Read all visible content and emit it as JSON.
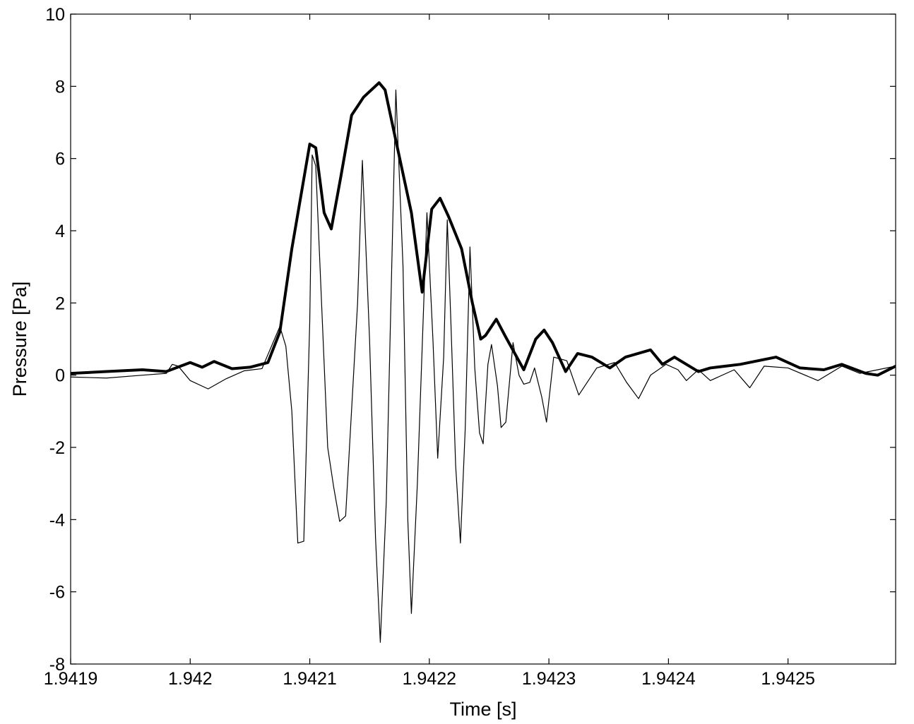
{
  "chart_data": {
    "type": "line",
    "title": "",
    "xlabel": "Time [s]",
    "ylabel": "Pressure [Pa]",
    "xlim": [
      1.9419,
      1.94259
    ],
    "ylim": [
      -8,
      10
    ],
    "xticks": [
      1.9419,
      1.942,
      1.9421,
      1.9422,
      1.9423,
      1.9424,
      1.9425
    ],
    "xtick_labels": [
      "1.9419",
      "1.942",
      "1.9421",
      "1.9422",
      "1.9423",
      "1.9424",
      "1.9425"
    ],
    "yticks": [
      -8,
      -6,
      -4,
      -2,
      0,
      2,
      4,
      6,
      8,
      10
    ],
    "ytick_labels": [
      "-8",
      "-6",
      "-4",
      "-2",
      "0",
      "2",
      "4",
      "6",
      "8",
      "10"
    ],
    "grid": false,
    "legend": false,
    "series": [
      {
        "style": "thin",
        "color": "#000000",
        "points": [
          [
            1.9419,
            -0.05
          ],
          [
            1.94193,
            -0.08
          ],
          [
            1.94196,
            0.0
          ],
          [
            1.94198,
            0.05
          ],
          [
            1.941985,
            0.3
          ],
          [
            1.94199,
            0.25
          ],
          [
            1.942,
            -0.15
          ],
          [
            1.942015,
            -0.38
          ],
          [
            1.94203,
            -0.1
          ],
          [
            1.942045,
            0.12
          ],
          [
            1.94206,
            0.18
          ],
          [
            1.942075,
            1.35
          ],
          [
            1.94208,
            0.8
          ],
          [
            1.942085,
            -1.0
          ],
          [
            1.94209,
            -4.65
          ],
          [
            1.942095,
            -4.6
          ],
          [
            1.9421,
            1.5
          ],
          [
            1.942102,
            6.1
          ],
          [
            1.942105,
            5.8
          ],
          [
            1.942115,
            -2.0
          ],
          [
            1.94212,
            -3.1
          ],
          [
            1.942125,
            -4.05
          ],
          [
            1.94213,
            -3.9
          ],
          [
            1.94214,
            2.0
          ],
          [
            1.942144,
            5.95
          ],
          [
            1.94215,
            1.0
          ],
          [
            1.942155,
            -4.5
          ],
          [
            1.942159,
            -7.4
          ],
          [
            1.942164,
            -3.5
          ],
          [
            1.942172,
            7.9
          ],
          [
            1.942178,
            3.0
          ],
          [
            1.942182,
            -4.0
          ],
          [
            1.942185,
            -6.6
          ],
          [
            1.94219,
            -3.0
          ],
          [
            1.942198,
            4.5
          ],
          [
            1.942203,
            1.0
          ],
          [
            1.942207,
            -2.3
          ],
          [
            1.942212,
            0.5
          ],
          [
            1.942215,
            4.3
          ],
          [
            1.942218,
            1.5
          ],
          [
            1.942222,
            -2.5
          ],
          [
            1.942226,
            -4.65
          ],
          [
            1.94223,
            -1.5
          ],
          [
            1.942234,
            3.55
          ],
          [
            1.942238,
            0.2
          ],
          [
            1.942242,
            -1.6
          ],
          [
            1.942245,
            -1.9
          ],
          [
            1.942249,
            0.3
          ],
          [
            1.942252,
            0.85
          ],
          [
            1.942257,
            -0.3
          ],
          [
            1.94226,
            -1.45
          ],
          [
            1.942264,
            -1.3
          ],
          [
            1.94227,
            0.9
          ],
          [
            1.942275,
            0.0
          ],
          [
            1.942279,
            -0.25
          ],
          [
            1.942284,
            -0.2
          ],
          [
            1.942288,
            0.2
          ],
          [
            1.942294,
            -0.6
          ],
          [
            1.942298,
            -1.3
          ],
          [
            1.942304,
            0.5
          ],
          [
            1.942315,
            0.4
          ],
          [
            1.942325,
            -0.55
          ],
          [
            1.94234,
            0.2
          ],
          [
            1.942355,
            0.35
          ],
          [
            1.942365,
            -0.2
          ],
          [
            1.942375,
            -0.65
          ],
          [
            1.942385,
            0.0
          ],
          [
            1.942398,
            0.3
          ],
          [
            1.942408,
            0.15
          ],
          [
            1.942415,
            -0.15
          ],
          [
            1.942425,
            0.15
          ],
          [
            1.942435,
            -0.15
          ],
          [
            1.942455,
            0.15
          ],
          [
            1.942468,
            -0.35
          ],
          [
            1.94248,
            0.25
          ],
          [
            1.9425,
            0.2
          ],
          [
            1.942525,
            -0.15
          ],
          [
            1.942545,
            0.25
          ],
          [
            1.94256,
            0.05
          ],
          [
            1.94259,
            0.25
          ]
        ]
      },
      {
        "style": "thick",
        "color": "#000000",
        "points": [
          [
            1.9419,
            0.05
          ],
          [
            1.94193,
            0.1
          ],
          [
            1.94196,
            0.15
          ],
          [
            1.94198,
            0.1
          ],
          [
            1.942,
            0.35
          ],
          [
            1.94201,
            0.22
          ],
          [
            1.94202,
            0.38
          ],
          [
            1.942035,
            0.18
          ],
          [
            1.94205,
            0.22
          ],
          [
            1.942065,
            0.35
          ],
          [
            1.942075,
            1.2
          ],
          [
            1.942085,
            3.5
          ],
          [
            1.9421,
            6.4
          ],
          [
            1.942105,
            6.3
          ],
          [
            1.942112,
            4.5
          ],
          [
            1.942118,
            4.05
          ],
          [
            1.942126,
            5.5
          ],
          [
            1.942135,
            7.2
          ],
          [
            1.942145,
            7.7
          ],
          [
            1.942158,
            8.1
          ],
          [
            1.942163,
            7.9
          ],
          [
            1.942172,
            6.5
          ],
          [
            1.942185,
            4.5
          ],
          [
            1.942194,
            2.3
          ],
          [
            1.942202,
            4.6
          ],
          [
            1.942209,
            4.9
          ],
          [
            1.942216,
            4.4
          ],
          [
            1.942227,
            3.5
          ],
          [
            1.942236,
            2.0
          ],
          [
            1.942243,
            1.0
          ],
          [
            1.942247,
            1.1
          ],
          [
            1.942256,
            1.55
          ],
          [
            1.942264,
            1.05
          ],
          [
            1.942279,
            0.15
          ],
          [
            1.942289,
            1.0
          ],
          [
            1.942296,
            1.25
          ],
          [
            1.942303,
            0.9
          ],
          [
            1.942314,
            0.1
          ],
          [
            1.942324,
            0.6
          ],
          [
            1.942336,
            0.5
          ],
          [
            1.942351,
            0.2
          ],
          [
            1.942364,
            0.5
          ],
          [
            1.942385,
            0.7
          ],
          [
            1.942395,
            0.3
          ],
          [
            1.942405,
            0.5
          ],
          [
            1.942415,
            0.3
          ],
          [
            1.942425,
            0.1
          ],
          [
            1.942435,
            0.2
          ],
          [
            1.94246,
            0.3
          ],
          [
            1.94249,
            0.5
          ],
          [
            1.94251,
            0.2
          ],
          [
            1.94253,
            0.15
          ],
          [
            1.942545,
            0.3
          ],
          [
            1.942565,
            0.05
          ],
          [
            1.942575,
            0.0
          ],
          [
            1.94259,
            0.25
          ]
        ]
      }
    ]
  }
}
